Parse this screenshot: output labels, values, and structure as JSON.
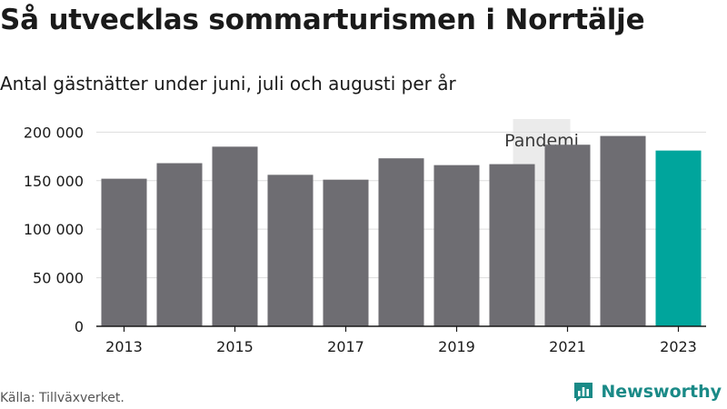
{
  "header": {
    "title": "Så utvecklas sommarturismen i Norrtälje",
    "subtitle": "Antal gästnätter under juni, juli och augusti per år"
  },
  "footer": {
    "source": "Källa: Tillväxverket.",
    "brand": "Newsworthy"
  },
  "colors": {
    "bar": "#6e6d72",
    "highlight": "#00a59c",
    "band": "#ebebeb",
    "grid": "#dddddd"
  },
  "chart_data": {
    "type": "bar",
    "title": "Så utvecklas sommarturismen i Norrtälje",
    "subtitle": "Antal gästnätter under juni, juli och augusti per år",
    "categories": [
      "2013",
      "2014",
      "2015",
      "2016",
      "2017",
      "2018",
      "2019",
      "2020",
      "2021",
      "2022",
      "2023"
    ],
    "values": [
      152000,
      168000,
      185000,
      156000,
      151000,
      173000,
      166000,
      167000,
      187000,
      196000,
      181000
    ],
    "highlight_category": "2023",
    "x_tick_labels": [
      "2013",
      "2015",
      "2017",
      "2019",
      "2021",
      "2023"
    ],
    "y_ticks": [
      0,
      50000,
      100000,
      150000,
      200000
    ],
    "y_tick_labels": [
      "0",
      "50 000",
      "100 000",
      "150 000",
      "200 000"
    ],
    "ylim": [
      0,
      205000
    ],
    "grid": true,
    "annotations": [
      {
        "label": "Pandemi",
        "from": "2020",
        "to": "2021"
      }
    ]
  }
}
